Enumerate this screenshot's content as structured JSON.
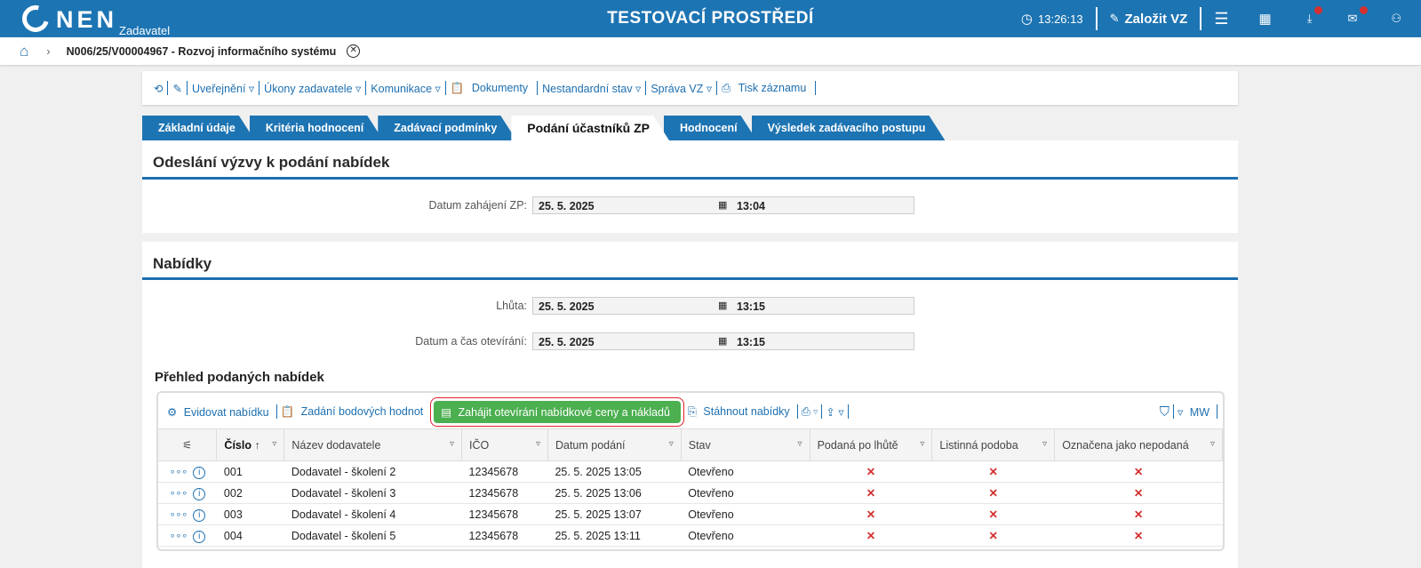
{
  "header": {
    "logo": "NEN",
    "role": "Zadavatel",
    "title": "TESTOVACÍ PROSTŘEDÍ",
    "time": "13:26:13",
    "create": "Založit VZ",
    "colors": {
      "primary": "#1d74b3",
      "badge": "#d32f2f"
    }
  },
  "breadcrumb": {
    "text": "N006/25/V00004967 - Rozvoj informačního systému"
  },
  "toolbar": [
    "Uveřejnění ▿",
    "Úkony zadavatele ▿",
    "Komunikace ▿",
    "Dokumenty",
    "Nestandardní stav ▿",
    "Správa VZ ▿",
    "Tisk záznamu"
  ],
  "tabs": [
    "Základní údaje",
    "Kritéria hodnocení",
    "Zadávací podmínky",
    "Podání účastníků ZP",
    "Hodnocení",
    "Výsledek zadávacího postupu"
  ],
  "section1": {
    "title": "Odeslání výzvy k podání nabídek",
    "label": "Datum zahájení ZP:",
    "date": "25. 5. 2025",
    "time": "13:04"
  },
  "section2": {
    "title": "Nabídky",
    "deadline_label": "Lhůta:",
    "deadline_date": "25. 5. 2025",
    "deadline_time": "13:15",
    "open_label": "Datum a čas otevírání:",
    "open_date": "25. 5. 2025",
    "open_time": "13:15",
    "overview": "Přehled podaných nabídek"
  },
  "grid": {
    "actions": {
      "register": "Evidovat nabídku",
      "points": "Zadání bodových hodnot",
      "start": "Zahájit otevírání nabídkové ceny a nákladů",
      "download": "Stáhnout nabídky",
      "mw": "MW"
    },
    "columns": [
      "Číslo",
      "Název dodavatele",
      "IČO",
      "Datum podání",
      "Stav",
      "Podaná po lhůtě",
      "Listinná podoba",
      "Označena jako nepodaná"
    ],
    "rows": [
      {
        "num": "001",
        "name": "Dodavatel - školení 2",
        "ico": "12345678",
        "date": "25. 5. 2025 13:05",
        "state": "Otevřeno",
        "late": "✕",
        "paper": "✕",
        "unsub": "✕"
      },
      {
        "num": "002",
        "name": "Dodavatel - školení 3",
        "ico": "12345678",
        "date": "25. 5. 2025 13:06",
        "state": "Otevřeno",
        "late": "✕",
        "paper": "✕",
        "unsub": "✕"
      },
      {
        "num": "003",
        "name": "Dodavatel - školení 4",
        "ico": "12345678",
        "date": "25. 5. 2025 13:07",
        "state": "Otevřeno",
        "late": "✕",
        "paper": "✕",
        "unsub": "✕"
      },
      {
        "num": "004",
        "name": "Dodavatel - školení 5",
        "ico": "12345678",
        "date": "25. 5. 2025 13:11",
        "state": "Otevřeno",
        "late": "✕",
        "paper": "✕",
        "unsub": "✕"
      }
    ]
  }
}
